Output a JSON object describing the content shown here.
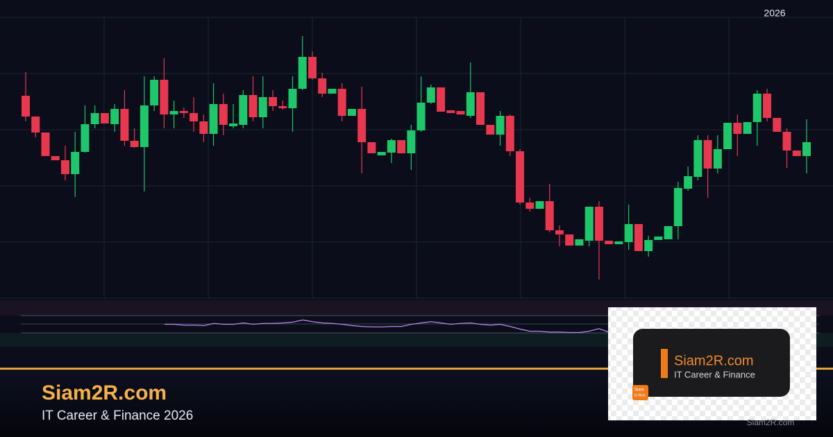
{
  "chart_data": [
    {
      "type": "candlestick",
      "up_color": "#1ec76a",
      "down_color": "#e8384f",
      "ylim": [
        0,
        405
      ],
      "series": {
        "open": [
          292,
          262,
          239,
          205,
          199,
          179,
          211,
          251,
          267,
          251,
          273,
          227,
          218,
          278,
          315,
          265,
          270,
          267,
          255,
          237,
          280,
          248,
          250,
          293,
          261,
          290,
          277,
          274,
          302,
          348,
          317,
          295,
          302,
          263,
          273,
          225,
          206,
          210,
          228,
          209,
          242,
          282,
          304,
          271,
          270,
          263,
          297,
          250,
          236,
          263,
          212,
          138,
          129,
          140,
          98,
          92,
          76,
          83,
          132,
          83,
          78,
          81,
          107,
          68,
          84,
          85,
          104,
          158,
          175,
          228,
          187,
          215,
          253,
          237,
          254,
          295,
          260,
          240,
          213,
          205
        ],
        "high": [
          326,
          262,
          239,
          205,
          220,
          240,
          278,
          278,
          267,
          280,
          300,
          245,
          320,
          320,
          346,
          285,
          275,
          290,
          265,
          310,
          295,
          280,
          300,
          320,
          320,
          300,
          285,
          320,
          378,
          356,
          325,
          302,
          310,
          273,
          305,
          225,
          211,
          230,
          228,
          250,
          320,
          308,
          304,
          271,
          270,
          340,
          297,
          250,
          270,
          265,
          215,
          145,
          140,
          165,
          105,
          92,
          85,
          132,
          140,
          83,
          82,
          135,
          107,
          90,
          89,
          104,
          168,
          190,
          235,
          235,
          235,
          253,
          265,
          254,
          300,
          302,
          260,
          245,
          213,
          258
        ],
        "low": [
          255,
          232,
          205,
          199,
          170,
          146,
          210,
          245,
          252,
          240,
          220,
          217,
          154,
          270,
          245,
          245,
          260,
          240,
          225,
          220,
          235,
          245,
          245,
          255,
          245,
          270,
          272,
          240,
          300,
          315,
          290,
          295,
          255,
          263,
          180,
          209,
          206,
          195,
          209,
          185,
          240,
          280,
          269,
          267,
          265,
          260,
          250,
          236,
          220,
          205,
          135,
          125,
          129,
          95,
          75,
          76,
          76,
          75,
          27,
          78,
          78,
          70,
          68,
          60,
          84,
          85,
          85,
          155,
          170,
          145,
          180,
          215,
          205,
          237,
          220,
          255,
          240,
          188,
          205,
          180
        ],
        "close": [
          262,
          239,
          205,
          199,
          179,
          211,
          251,
          267,
          252,
          273,
          227,
          218,
          278,
          315,
          265,
          270,
          267,
          255,
          237,
          280,
          250,
          252,
          293,
          261,
          290,
          277,
          274,
          302,
          348,
          317,
          295,
          302,
          263,
          273,
          225,
          209,
          211,
          228,
          209,
          242,
          282,
          304,
          269,
          267,
          265,
          297,
          250,
          236,
          263,
          212,
          138,
          129,
          140,
          98,
          92,
          76,
          85,
          132,
          83,
          78,
          82,
          107,
          68,
          84,
          89,
          104,
          159,
          176,
          228,
          187,
          215,
          253,
          237,
          254,
          295,
          260,
          240,
          213,
          205,
          225
        ]
      }
    },
    {
      "type": "line",
      "color": "#b78cf0",
      "ylim": [
        30,
        70
      ],
      "values": [
        50,
        50,
        48,
        48,
        47,
        52,
        50,
        50,
        53,
        50,
        52,
        52,
        53,
        55,
        60,
        56,
        53,
        52,
        50,
        47,
        45,
        44,
        44,
        45,
        45,
        50,
        53,
        56,
        53,
        50,
        52,
        53,
        50,
        48,
        50,
        45,
        39,
        34,
        34,
        32,
        32,
        31,
        31,
        34,
        40,
        32
      ]
    }
  ],
  "header": {
    "year": "2026"
  },
  "brand": {
    "site": "Siam2R.com",
    "tagline": "IT Career & Finance 2026"
  },
  "logo": {
    "site": "Siam2R.com",
    "tagline": "IT Career & Finance",
    "badge": [
      "Siam",
      "to Rich"
    ]
  },
  "watermark": "Siam2R.com"
}
